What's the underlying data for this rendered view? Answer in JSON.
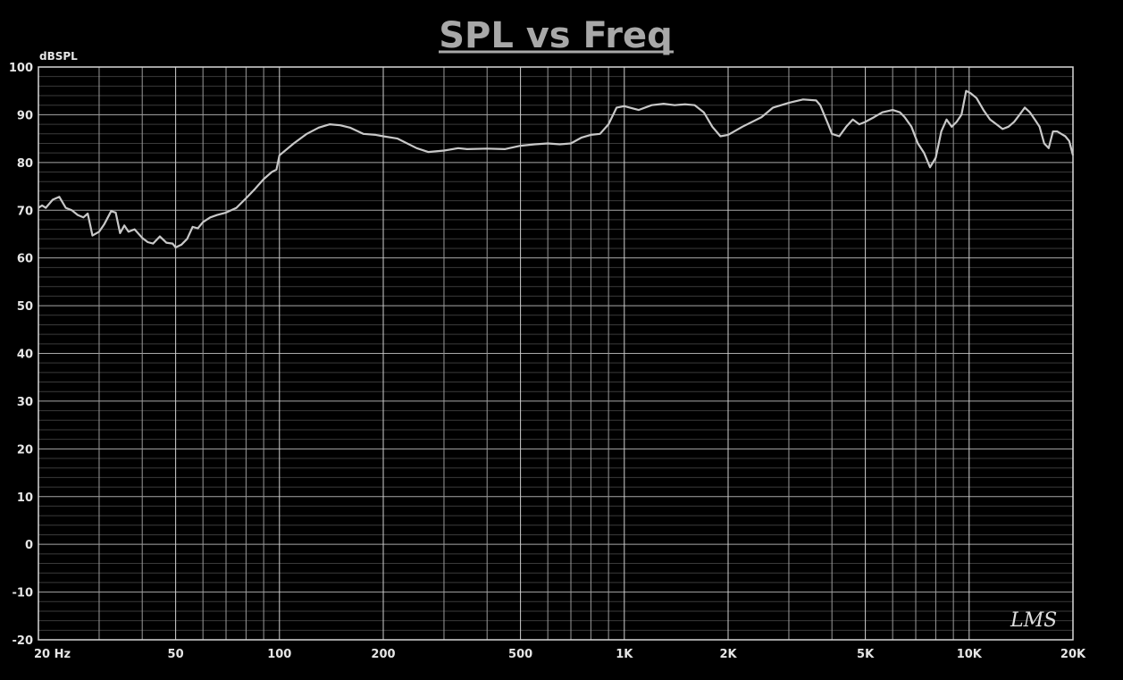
{
  "chart_data": {
    "type": "line",
    "title": "SPL vs Freq",
    "ylabel": "dBSPL",
    "xlabel": "",
    "x_scale": "log",
    "xlim": [
      20,
      20000
    ],
    "ylim": [
      -20,
      100
    ],
    "grid": true,
    "y_ticks": [
      "100",
      "90",
      "80",
      "70",
      "60",
      "50",
      "40",
      "30",
      "20",
      "10",
      "0",
      "-10",
      "-20"
    ],
    "x_tick_labels": [
      {
        "f": 20,
        "label": "20  Hz"
      },
      {
        "f": 50,
        "label": "50"
      },
      {
        "f": 100,
        "label": "100"
      },
      {
        "f": 200,
        "label": "200"
      },
      {
        "f": 500,
        "label": "500"
      },
      {
        "f": 1000,
        "label": "1K"
      },
      {
        "f": 2000,
        "label": "2K"
      },
      {
        "f": 5000,
        "label": "5K"
      },
      {
        "f": 10000,
        "label": "10K"
      },
      {
        "f": 20000,
        "label": "20K"
      }
    ],
    "series": [
      {
        "color": "#c8c8c8",
        "points": [
          [
            20,
            70.5
          ],
          [
            20.5,
            71
          ],
          [
            21,
            70.5
          ],
          [
            22,
            72.2
          ],
          [
            23,
            72.8
          ],
          [
            24,
            70.5
          ],
          [
            25,
            70
          ],
          [
            26,
            69
          ],
          [
            27,
            68.5
          ],
          [
            27.8,
            69.3
          ],
          [
            28.7,
            64.7
          ],
          [
            30,
            65.5
          ],
          [
            31,
            67
          ],
          [
            32.5,
            69.8
          ],
          [
            33.5,
            69.5
          ],
          [
            34.5,
            65.2
          ],
          [
            35.5,
            66.8
          ],
          [
            36.5,
            65.5
          ],
          [
            38,
            66
          ],
          [
            40,
            64.2
          ],
          [
            41.5,
            63.3
          ],
          [
            43,
            63
          ],
          [
            45,
            64.5
          ],
          [
            47,
            63.2
          ],
          [
            49,
            63
          ],
          [
            50,
            62.2
          ],
          [
            52,
            62.8
          ],
          [
            54,
            64
          ],
          [
            56,
            66.5
          ],
          [
            58,
            66.2
          ],
          [
            60,
            67.5
          ],
          [
            63,
            68.5
          ],
          [
            66,
            69
          ],
          [
            70,
            69.5
          ],
          [
            75,
            70.5
          ],
          [
            80,
            72.5
          ],
          [
            85,
            74.5
          ],
          [
            90,
            76.5
          ],
          [
            95,
            78
          ],
          [
            98,
            78.5
          ],
          [
            100,
            81.5
          ],
          [
            110,
            84
          ],
          [
            120,
            86
          ],
          [
            130,
            87.3
          ],
          [
            140,
            88
          ],
          [
            150,
            87.8
          ],
          [
            160,
            87.3
          ],
          [
            175,
            86
          ],
          [
            190,
            85.8
          ],
          [
            200,
            85.5
          ],
          [
            220,
            85
          ],
          [
            250,
            83
          ],
          [
            270,
            82.2
          ],
          [
            300,
            82.5
          ],
          [
            330,
            83
          ],
          [
            350,
            82.8
          ],
          [
            400,
            82.9
          ],
          [
            450,
            82.8
          ],
          [
            500,
            83.5
          ],
          [
            550,
            83.8
          ],
          [
            600,
            84
          ],
          [
            650,
            83.8
          ],
          [
            700,
            84
          ],
          [
            750,
            85.2
          ],
          [
            800,
            85.8
          ],
          [
            850,
            86
          ],
          [
            900,
            88
          ],
          [
            950,
            91.5
          ],
          [
            1000,
            91.8
          ],
          [
            1100,
            91
          ],
          [
            1200,
            92
          ],
          [
            1300,
            92.3
          ],
          [
            1400,
            92
          ],
          [
            1500,
            92.2
          ],
          [
            1600,
            92
          ],
          [
            1700,
            90.5
          ],
          [
            1800,
            87.5
          ],
          [
            1900,
            85.5
          ],
          [
            2000,
            85.8
          ],
          [
            2200,
            87.5
          ],
          [
            2500,
            89.5
          ],
          [
            2700,
            91.5
          ],
          [
            3000,
            92.5
          ],
          [
            3300,
            93.2
          ],
          [
            3600,
            93
          ],
          [
            3700,
            92
          ],
          [
            3900,
            88
          ],
          [
            4000,
            86
          ],
          [
            4200,
            85.5
          ],
          [
            4400,
            87.5
          ],
          [
            4600,
            89
          ],
          [
            4800,
            88
          ],
          [
            5000,
            88.5
          ],
          [
            5300,
            89.5
          ],
          [
            5600,
            90.5
          ],
          [
            6000,
            91
          ],
          [
            6300,
            90.5
          ],
          [
            6500,
            89.5
          ],
          [
            6800,
            87.5
          ],
          [
            7100,
            84
          ],
          [
            7400,
            82
          ],
          [
            7700,
            79
          ],
          [
            8000,
            81
          ],
          [
            8300,
            86.5
          ],
          [
            8600,
            89
          ],
          [
            8900,
            87.5
          ],
          [
            9200,
            88.5
          ],
          [
            9500,
            90
          ],
          [
            9800,
            95
          ],
          [
            10100,
            94.5
          ],
          [
            10500,
            93.5
          ],
          [
            11000,
            91
          ],
          [
            11500,
            89
          ],
          [
            12000,
            88
          ],
          [
            12500,
            87
          ],
          [
            13000,
            87.5
          ],
          [
            13500,
            88.5
          ],
          [
            14000,
            90
          ],
          [
            14500,
            91.5
          ],
          [
            15000,
            90.5
          ],
          [
            15500,
            89
          ],
          [
            16000,
            87.5
          ],
          [
            16500,
            84
          ],
          [
            17000,
            83
          ],
          [
            17500,
            86.5
          ],
          [
            18000,
            86.5
          ],
          [
            18500,
            86
          ],
          [
            19000,
            85.5
          ],
          [
            19500,
            84.5
          ],
          [
            20000,
            81.5
          ]
        ]
      }
    ],
    "watermark": "LMS"
  }
}
